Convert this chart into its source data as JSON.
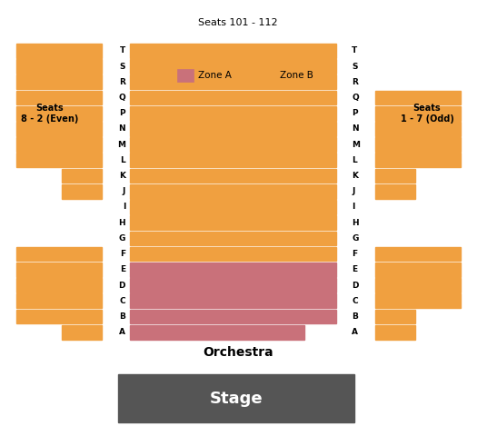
{
  "title_top": "Seats 101 - 112",
  "title_orchestra": "Orchestra",
  "title_stage": "Stage",
  "label_left": "Seats\n8 - 2 (Even)",
  "label_right": "Seats\n1 - 7 (Odd)",
  "zone_a_color": "#c9717a",
  "zone_b_color": "#f0a040",
  "stage_color": "#555555",
  "stage_text_color": "#ffffff",
  "bg_color": "#ffffff",
  "rows": [
    "T",
    "S",
    "R",
    "Q",
    "P",
    "N",
    "M",
    "L",
    "K",
    "J",
    "I",
    "H",
    "G",
    "F",
    "E",
    "D",
    "C",
    "B",
    "A"
  ],
  "zone_a_rows": [
    "E",
    "D",
    "C",
    "B",
    "A"
  ],
  "legend_zone_a": "Zone A",
  "legend_zone_b": "Zone B",
  "left_full_rows": [
    "T",
    "S",
    "R",
    "Q",
    "P",
    "N",
    "M",
    "L"
  ],
  "left_small_rows": [
    "K",
    "J"
  ],
  "left_lower_full_rows": [
    "F",
    "E",
    "D",
    "C",
    "B"
  ],
  "left_lower_small_rows": [
    "A"
  ],
  "right_upper_full_rows": [
    "Q",
    "P",
    "N",
    "M",
    "L"
  ],
  "right_small_rows": [
    "K",
    "J"
  ],
  "right_lower_full_rows": [
    "F",
    "E",
    "D",
    "C"
  ],
  "right_lower_small_rows": [
    "B",
    "A"
  ]
}
